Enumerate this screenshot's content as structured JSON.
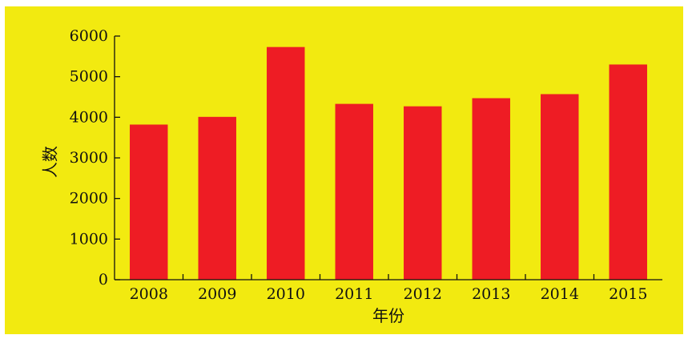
{
  "colors": {
    "background": "#f2ea10",
    "bar": "#ee1c24",
    "axis": "#111111"
  },
  "chart_data": {
    "type": "bar",
    "title": "",
    "xlabel": "年份",
    "ylabel": "人数",
    "categories": [
      "2008",
      "2009",
      "2010",
      "2011",
      "2012",
      "2013",
      "2014",
      "2015"
    ],
    "values": [
      3820,
      4010,
      5730,
      4330,
      4270,
      4470,
      4570,
      5300
    ],
    "ylim": [
      0,
      6000
    ],
    "yticks": [
      "0",
      "1000",
      "2000",
      "3000",
      "4000",
      "5000",
      "6000"
    ],
    "grid": false,
    "legend": "none"
  }
}
